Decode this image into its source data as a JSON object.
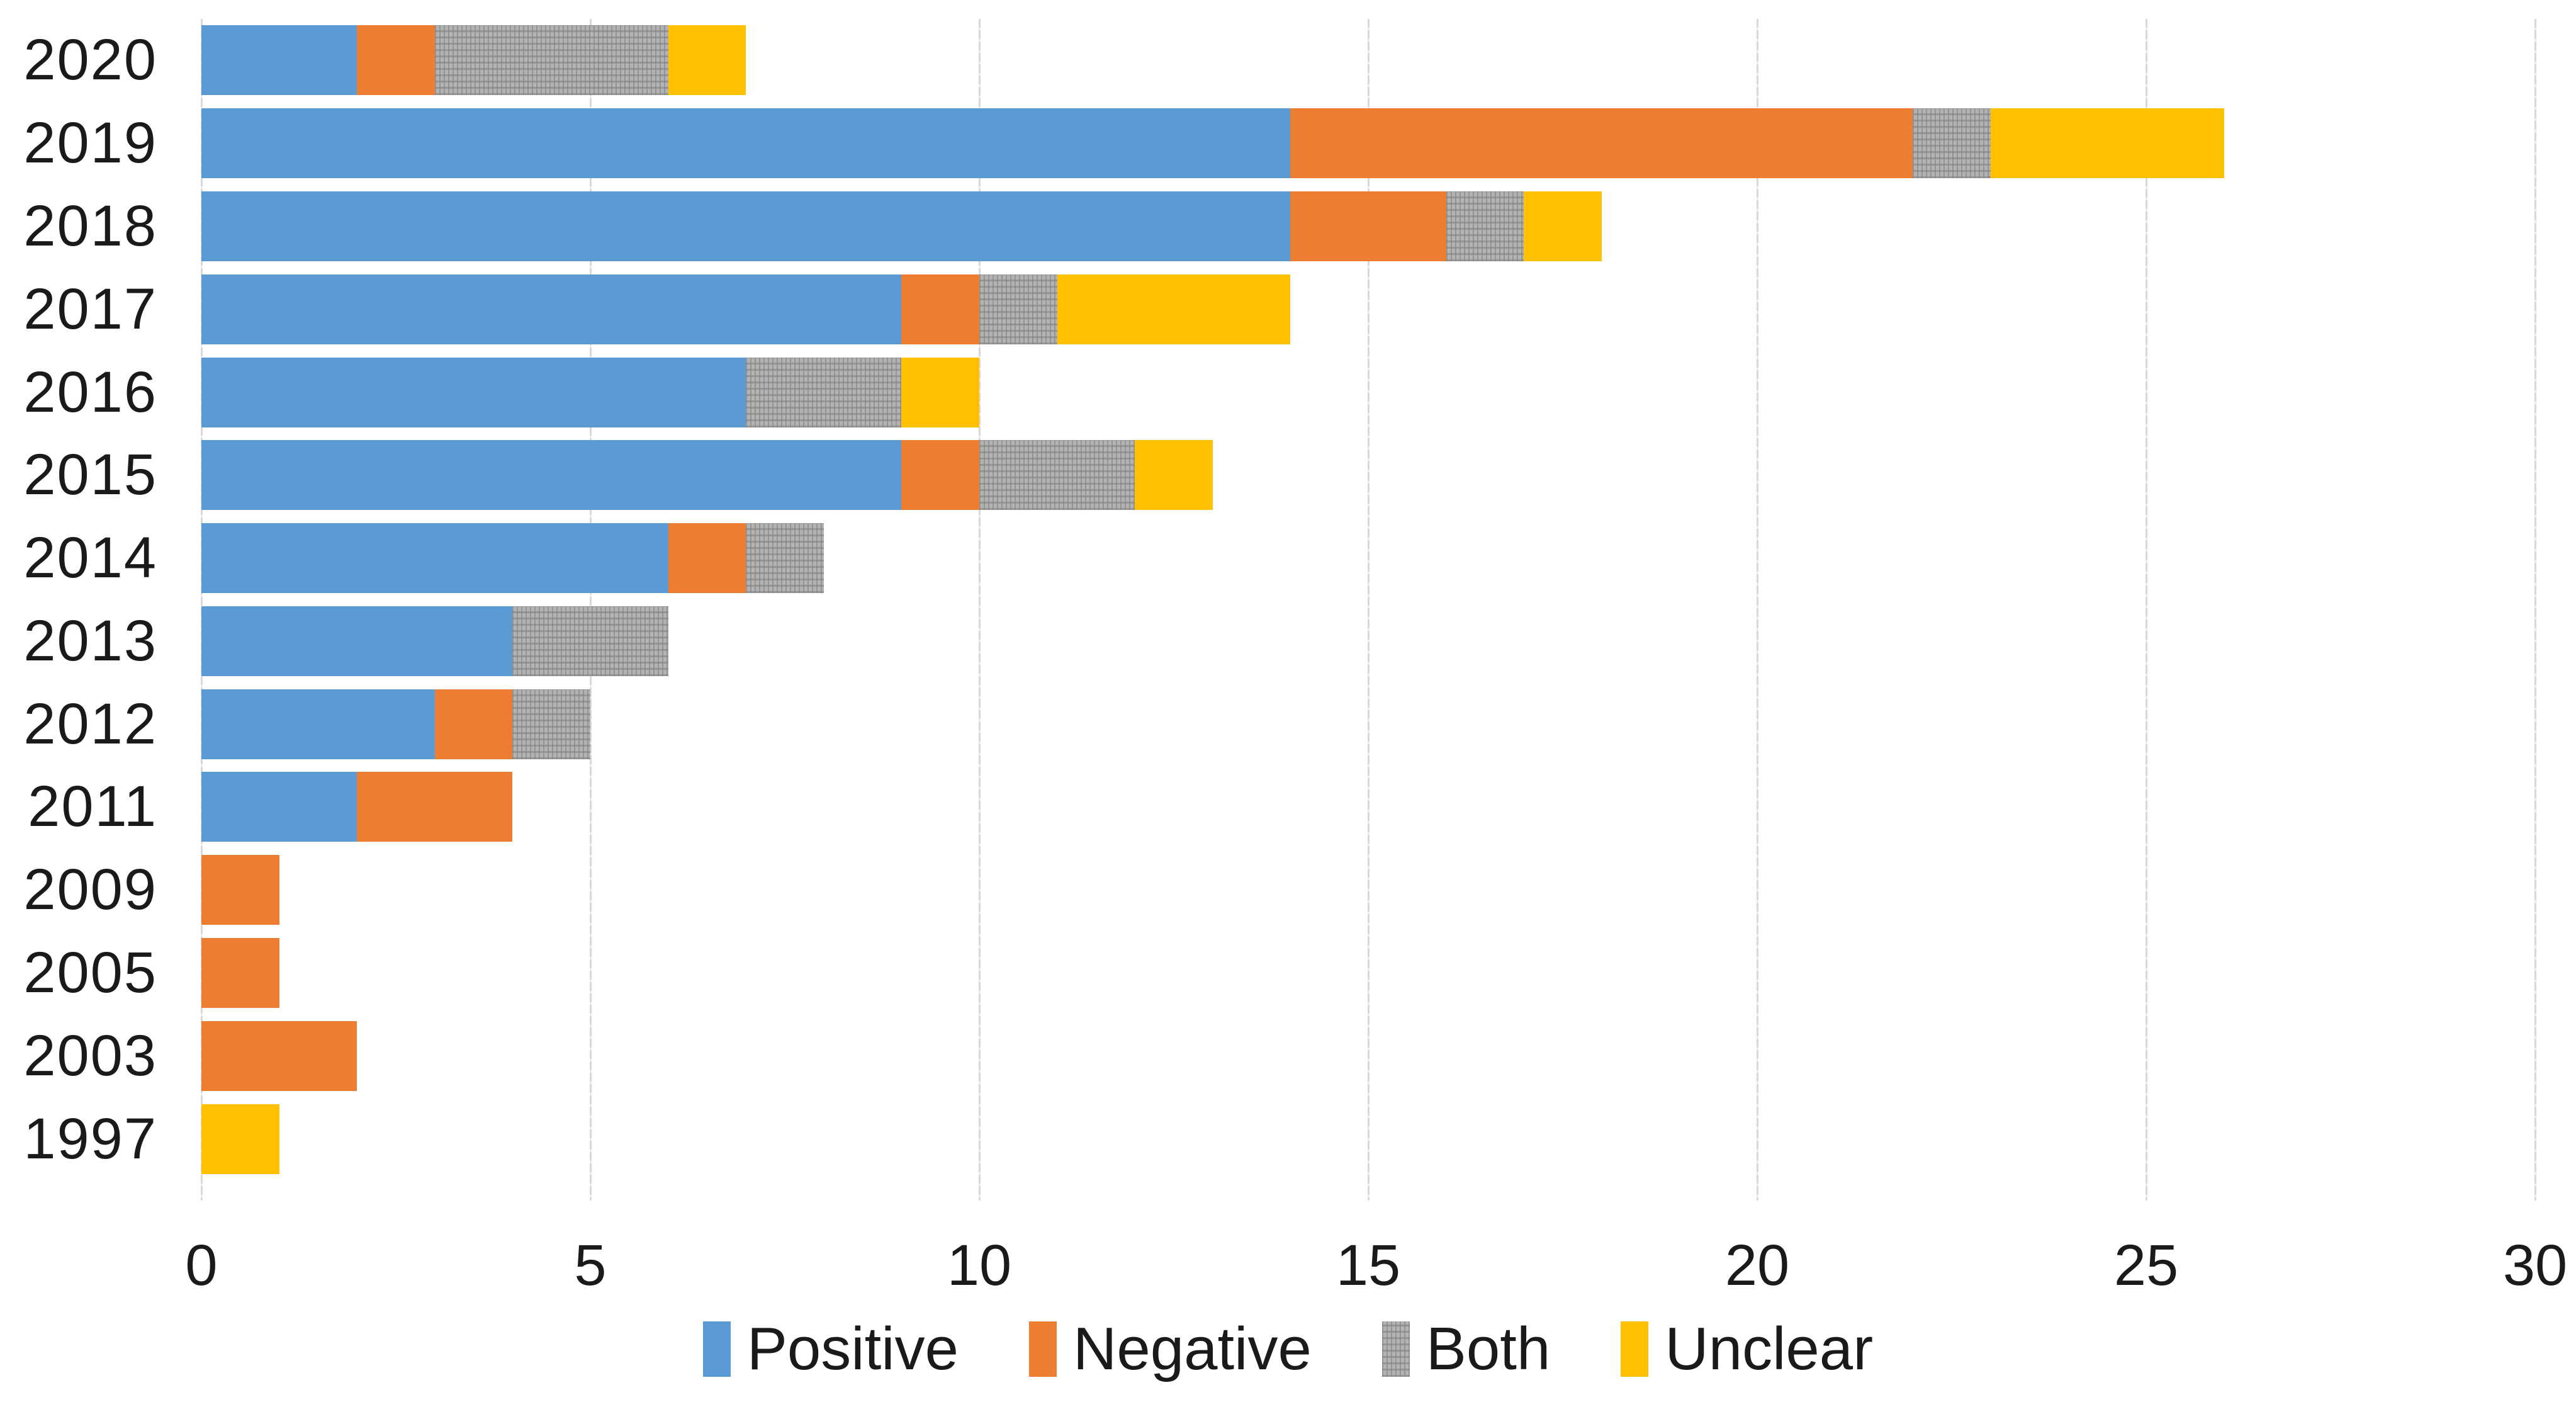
{
  "chart_data": {
    "type": "bar",
    "orientation": "horizontal",
    "stacked": true,
    "title": "",
    "xlabel": "",
    "ylabel": "",
    "categories": [
      "2020",
      "2019",
      "2018",
      "2017",
      "2016",
      "2015",
      "2014",
      "2013",
      "2012",
      "2011",
      "2009",
      "2005",
      "2003",
      "1997"
    ],
    "series": [
      {
        "key": "positive",
        "name": "Positive",
        "color": "#5B9BD5",
        "pattern": "solid",
        "values": [
          2,
          14,
          14,
          9,
          7,
          9,
          6,
          4,
          3,
          2,
          0,
          0,
          0,
          0
        ]
      },
      {
        "key": "negative",
        "name": "Negative",
        "color": "#ED7D31",
        "pattern": "solid",
        "values": [
          1,
          8,
          2,
          1,
          0,
          1,
          1,
          0,
          1,
          2,
          1,
          1,
          2,
          0
        ]
      },
      {
        "key": "both",
        "name": "Both",
        "color": "#A6A6A6",
        "pattern": "dotted",
        "values": [
          3,
          1,
          1,
          1,
          2,
          2,
          1,
          2,
          1,
          0,
          0,
          0,
          0,
          0
        ]
      },
      {
        "key": "unclear",
        "name": "Unclear",
        "color": "#FFC000",
        "pattern": "solid",
        "values": [
          1,
          3,
          1,
          3,
          1,
          1,
          0,
          0,
          0,
          0,
          0,
          0,
          0,
          1
        ]
      }
    ],
    "totals_by_category": [
      7,
      26,
      18,
      14,
      10,
      13,
      8,
      6,
      5,
      4,
      1,
      1,
      2,
      1
    ],
    "xlim": [
      0,
      30
    ],
    "xticks": [
      0,
      5,
      10,
      15,
      20,
      25,
      30
    ],
    "x_tick_labels": [
      "0",
      "5",
      "10",
      "15",
      "20",
      "25",
      "30"
    ],
    "grid": "vertical",
    "gridline_color": "#D9D9D9",
    "legend_position": "bottom",
    "legend_labels": [
      "Positive",
      "Negative",
      "Both",
      "Unclear"
    ],
    "text_color": "#1a1a1a"
  }
}
